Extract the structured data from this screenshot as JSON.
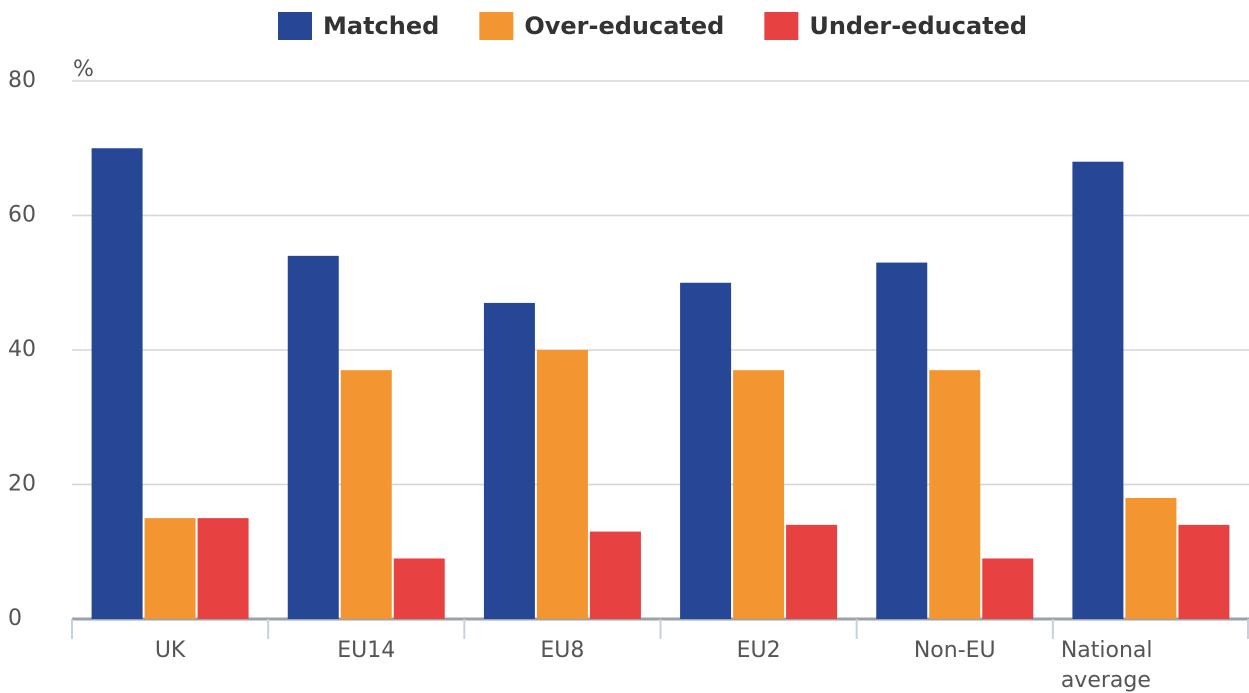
{
  "chart_data": {
    "type": "bar",
    "y_axis_label": "%",
    "categories": [
      "UK",
      "EU14",
      "EU8",
      "EU2",
      "Non-EU",
      "National average"
    ],
    "series": [
      {
        "name": "Matched",
        "color": "#264796",
        "values": [
          70,
          54,
          47,
          50,
          53,
          68
        ]
      },
      {
        "name": "Over-educated",
        "color": "#f39530",
        "values": [
          15,
          37,
          40,
          37,
          37,
          18
        ]
      },
      {
        "name": "Under-educated",
        "color": "#e84141",
        "values": [
          15,
          9,
          13,
          14,
          9,
          14
        ]
      }
    ],
    "ylim": [
      0,
      80
    ],
    "yticks": [
      0,
      20,
      40,
      60,
      80
    ],
    "grid": true,
    "legend": "top"
  }
}
